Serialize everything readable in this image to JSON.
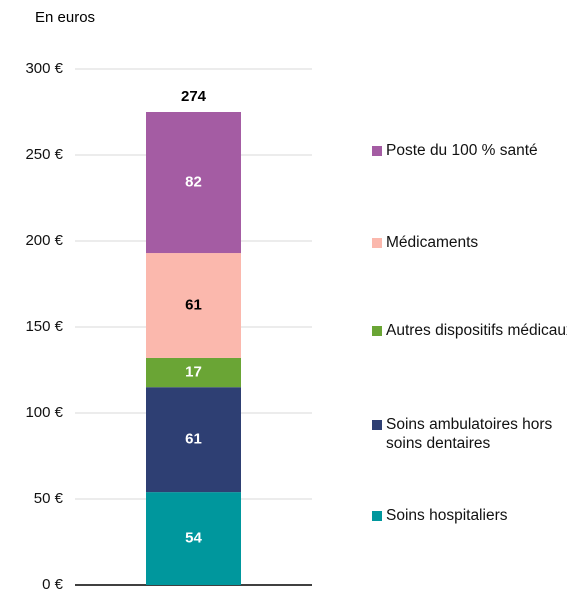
{
  "chart_data": {
    "type": "stacked_bar",
    "y_label": "En euros",
    "categories": [
      null
    ],
    "series": [
      {
        "name": "Soins hospitaliers",
        "color": "#00979d",
        "values": [
          54
        ]
      },
      {
        "name": "Soins ambulatoires hors soins dentaires",
        "color": "#2e3f73",
        "values": [
          61
        ]
      },
      {
        "name": "Autres dispositifs médicaux",
        "color": "#6aa535",
        "values": [
          17
        ]
      },
      {
        "name": "Médicaments",
        "color": "#fbb8ad",
        "values": [
          61
        ]
      },
      {
        "name": "Poste du 100 % santé",
        "color": "#a45ca3",
        "values": [
          82
        ]
      }
    ],
    "totals": [
      274
    ],
    "ylim": [
      0,
      300
    ],
    "yticks": [
      {
        "value": 0,
        "label": "0 €"
      },
      {
        "value": 50,
        "label": "50 €"
      },
      {
        "value": 100,
        "label": "100 €"
      },
      {
        "value": 150,
        "label": "150 €"
      },
      {
        "value": 200,
        "label": "200 €"
      },
      {
        "value": 250,
        "label": "250 €"
      },
      {
        "value": 300,
        "label": "300 €"
      }
    ],
    "grid": true
  }
}
